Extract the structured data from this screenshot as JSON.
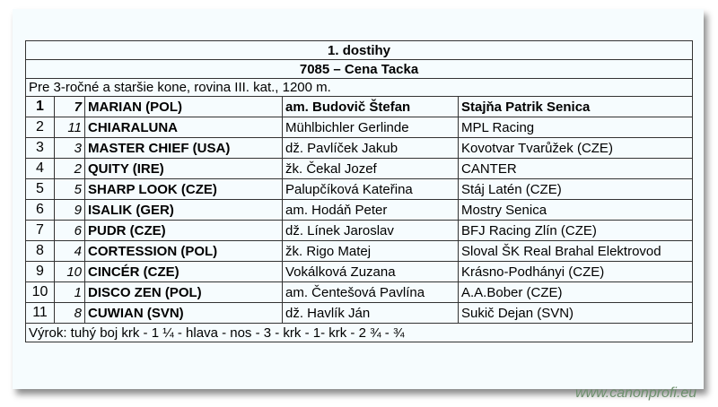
{
  "race": {
    "title": "1. dostihy",
    "name": "7085 – Cena Tacka",
    "conditions": "Pre 3-ročné a staršie kone, rovina III. kat., 1200 m.",
    "results": [
      {
        "place": "1",
        "number": "7",
        "horse": "MARIAN (POL)",
        "jockey": "am. Budovič Štefan",
        "owner": "Stajňa Patrik Senica"
      },
      {
        "place": "2",
        "number": "11",
        "horse": "CHIARALUNA",
        "jockey": "Mühlbichler Gerlinde",
        "owner": "MPL Racing"
      },
      {
        "place": "3",
        "number": "3",
        "horse": "MASTER CHIEF (USA)",
        "jockey": "dž. Pavlíček Jakub",
        "owner": "Kovotvar Tvarůžek (CZE)"
      },
      {
        "place": "4",
        "number": "2",
        "horse": "QUITY (IRE)",
        "jockey": "žk. Čekal Jozef",
        "owner": "CANTER"
      },
      {
        "place": "5",
        "number": "5",
        "horse": "SHARP LOOK (CZE)",
        "jockey": "Palupčíková Kateřina",
        "owner": "Stáj Latén (CZE)"
      },
      {
        "place": "6",
        "number": "9",
        "horse": "ISALIK (GER)",
        "jockey": "am. Hodáň Peter",
        "owner": "Mostry Senica"
      },
      {
        "place": "7",
        "number": "6",
        "horse": "PUDR (CZE)",
        "jockey": "dž. Línek Jaroslav",
        "owner": "BFJ Racing Zlín (CZE)"
      },
      {
        "place": "8",
        "number": "4",
        "horse": "CORTESSION (POL)",
        "jockey": "žk. Rigo Matej",
        "owner": "Sloval ŠK Real Brahal Elektrovod"
      },
      {
        "place": "9",
        "number": "10",
        "horse": "CINCÉR (CZE)",
        "jockey": "Vokálková Zuzana",
        "owner": "Krásno-Podhányi (CZE)"
      },
      {
        "place": "10",
        "number": "1",
        "horse": "DISCO ZEN (POL)",
        "jockey": "am. Čentešová Pavlína",
        "owner": "A.A.Bober (CZE)"
      },
      {
        "place": "11",
        "number": "8",
        "horse": "CUWIAN (SVN)",
        "jockey": "dž. Havlík Ján",
        "owner": "Sukič Dejan (SVN)"
      }
    ],
    "verdict": "Výrok: tuhý boj krk - 1 ¼ - hlava - nos - 3 - krk - 1- krk - 2 ¾ - ¾"
  },
  "watermark": "www.canonprofi.eu"
}
